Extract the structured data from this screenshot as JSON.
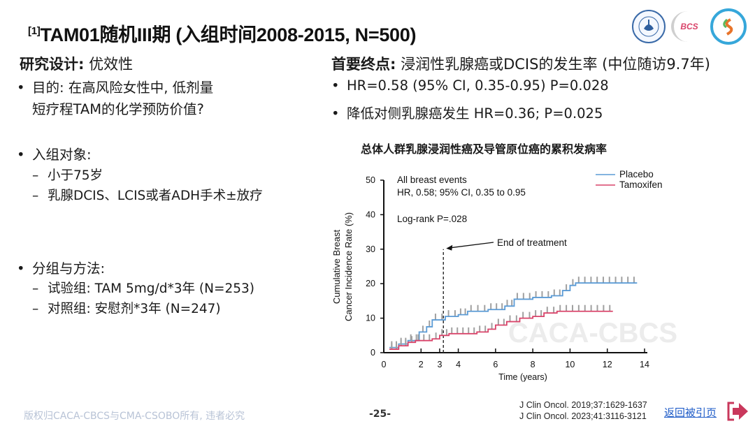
{
  "header": {
    "ref_marker": "[1]",
    "title": "TAM01随机III期 (入组时间2008-2015, N=500)",
    "logos": [
      {
        "name": "caca-logo-icon",
        "label": ""
      },
      {
        "name": "bcs-logo-icon",
        "label": "BCS"
      },
      {
        "name": "csobo-logo-icon",
        "label": ""
      }
    ]
  },
  "left": {
    "design_label": "研究设计:",
    "design_value": "优效性",
    "bullets": [
      {
        "text": "目的: 在高风险女性中, 低剂量",
        "cont": "短疗程TAM的化学预防价值?",
        "subs": []
      },
      {
        "text": "入组对象:",
        "subs": [
          "小于75岁",
          "乳腺DCIS、LCIS或者ADH手术±放疗"
        ]
      },
      {
        "text": "分组与方法:",
        "subs": [
          "试验组: TAM 5mg/d*3年 (N=253)",
          "对照组: 安慰剂*3年 (N=247)"
        ]
      }
    ],
    "bullet_glyph": "•",
    "dash_glyph": "–"
  },
  "right": {
    "endpoint_label": "首要终点:",
    "endpoint_value": "浸润性乳腺癌或DCIS的发生率 (中位随访9.7年)",
    "bullets": [
      "HR=0.58 (95% CI, 0.35-0.95) P=0.028",
      "降低对侧乳腺癌发生 HR=0.36; P=0.025"
    ],
    "chart_title": "总体人群乳腺浸润性癌及导管原位癌的累积发病率"
  },
  "chart_data": {
    "type": "line",
    "subtype": "kaplan-meier-cumulative-incidence",
    "title": "总体人群乳腺浸润性癌及导管原位癌的累积发病率",
    "xlabel": "Time (years)",
    "ylabel_lines": [
      "Cumulative Breast",
      "Cancer Incidence Rate (%)"
    ],
    "xlim": [
      0,
      14
    ],
    "ylim": [
      0,
      50
    ],
    "x_ticks": [
      0,
      2,
      3,
      4,
      6,
      8,
      10,
      12,
      14
    ],
    "y_ticks": [
      0,
      10,
      20,
      30,
      40,
      50
    ],
    "grid": false,
    "legend_position": "top-right",
    "annotations": {
      "line1": "All breast events",
      "line2": "HR, 0.58; 95% CI, 0.35 to 0.95",
      "line3": "Log-rank P=.028",
      "end_of_treatment_label": "End of treatment",
      "end_of_treatment_x": 3.2
    },
    "watermark": "CACA-CBCS",
    "series": [
      {
        "name": "Placebo",
        "color": "#5b9bd5",
        "points": [
          [
            0.3,
            1.5
          ],
          [
            0.8,
            2.5
          ],
          [
            1.3,
            3.5
          ],
          [
            1.9,
            6
          ],
          [
            2.3,
            7.5
          ],
          [
            2.6,
            9.5
          ],
          [
            3.3,
            10.5
          ],
          [
            4.0,
            11
          ],
          [
            4.5,
            12
          ],
          [
            5.6,
            12.5
          ],
          [
            6.5,
            13.5
          ],
          [
            7.0,
            15.5
          ],
          [
            8.0,
            16
          ],
          [
            9.0,
            16.5
          ],
          [
            9.6,
            18
          ],
          [
            10.0,
            19.5
          ],
          [
            10.3,
            20.2
          ],
          [
            13.6,
            20.2
          ]
        ]
      },
      {
        "name": "Tamoxifen",
        "color": "#d9446a",
        "points": [
          [
            0.3,
            1
          ],
          [
            0.8,
            2
          ],
          [
            1.3,
            3
          ],
          [
            1.7,
            3.5
          ],
          [
            2.6,
            4
          ],
          [
            3.0,
            5
          ],
          [
            3.5,
            5.5
          ],
          [
            5.0,
            6
          ],
          [
            5.6,
            6.8
          ],
          [
            6.0,
            8
          ],
          [
            6.6,
            9
          ],
          [
            7.3,
            10
          ],
          [
            8.0,
            10.5
          ],
          [
            8.6,
            11.5
          ],
          [
            9.3,
            12
          ],
          [
            12.3,
            12
          ]
        ]
      }
    ]
  },
  "footer": {
    "copyright": "版权归CACA-CBCS与CMA-CSOBO所有, 违者必究",
    "page": "-25-",
    "refs": [
      "J Clin Oncol. 2019;37:1629-1637",
      "J Clin Oncol. 2023;41:3116-3121"
    ],
    "back_link": "返回被引页"
  },
  "colors": {
    "placebo": "#5b9bd5",
    "tamoxifen": "#d9446a",
    "link": "#1f5cc8",
    "exit_icon": "#c9385c",
    "footer_text": "#b8c3d6"
  }
}
